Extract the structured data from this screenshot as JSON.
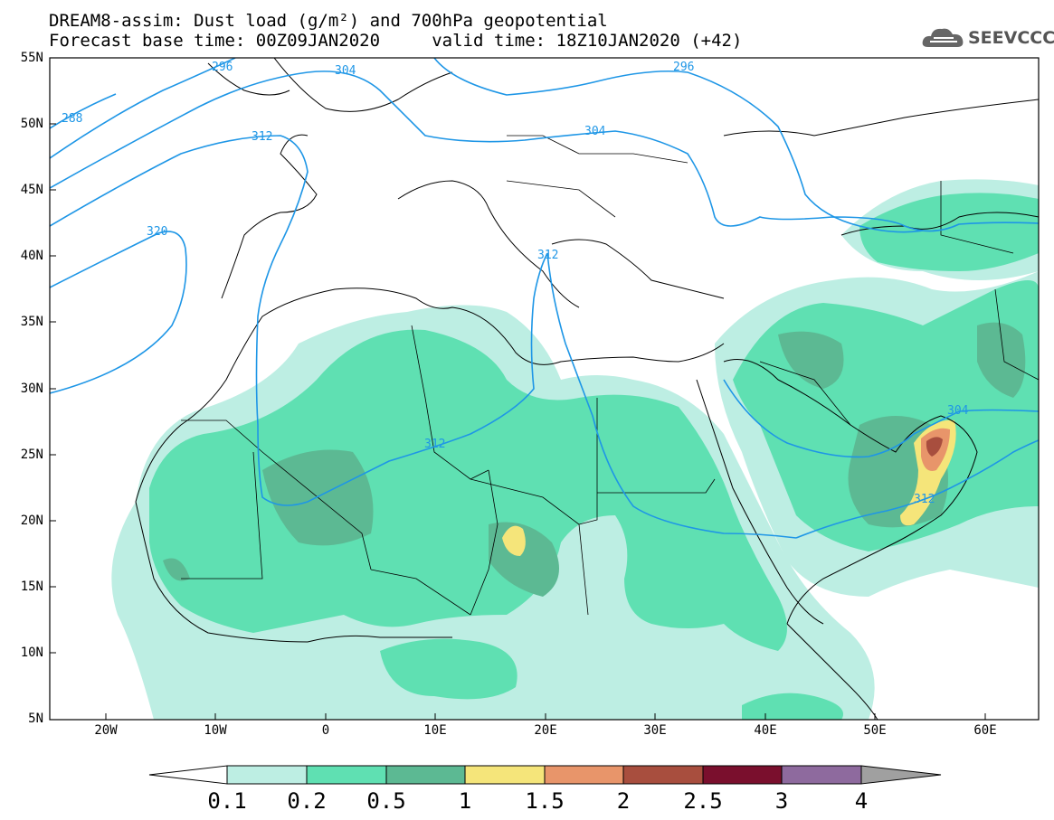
{
  "title": {
    "line1": "DREAM8-assim: Dust load (g/m²) and 700hPa geopotential",
    "line2": "Forecast base time: 00Z09JAN2020     valid time: 18Z10JAN2020 (+42)"
  },
  "logo": {
    "text": "SEEVCCC",
    "icon": "cloud-icon"
  },
  "axes": {
    "lat_labels": [
      "55N",
      "50N",
      "45N",
      "40N",
      "35N",
      "30N",
      "25N",
      "20N",
      "15N",
      "10N",
      "5N"
    ],
    "lon_labels": [
      "20W",
      "10W",
      "0",
      "10E",
      "20E",
      "30E",
      "40E",
      "50E",
      "60E"
    ]
  },
  "contour_labels": [
    "288",
    "296",
    "304",
    "312",
    "320",
    "304",
    "312",
    "296",
    "312",
    "304",
    "312"
  ],
  "colorbar": {
    "labels": [
      "0.1",
      "0.2",
      "0.5",
      "1",
      "1.5",
      "2",
      "2.5",
      "3",
      "4"
    ],
    "colors": [
      "#ffffff",
      "#bdeee3",
      "#5fe0b2",
      "#5cb993",
      "#f5e57a",
      "#e8956a",
      "#a84e3e",
      "#7a0f2d",
      "#8e6a9e",
      "#a0a0a0"
    ]
  },
  "colors": {
    "contour": "#1e96e6",
    "coast": "#000000",
    "dust_01": "#bdeee3",
    "dust_02": "#5fe0b2",
    "dust_05": "#5cb993",
    "dust_1": "#f5e57a",
    "dust_15": "#e8956a",
    "dust_2": "#a84e3e"
  }
}
